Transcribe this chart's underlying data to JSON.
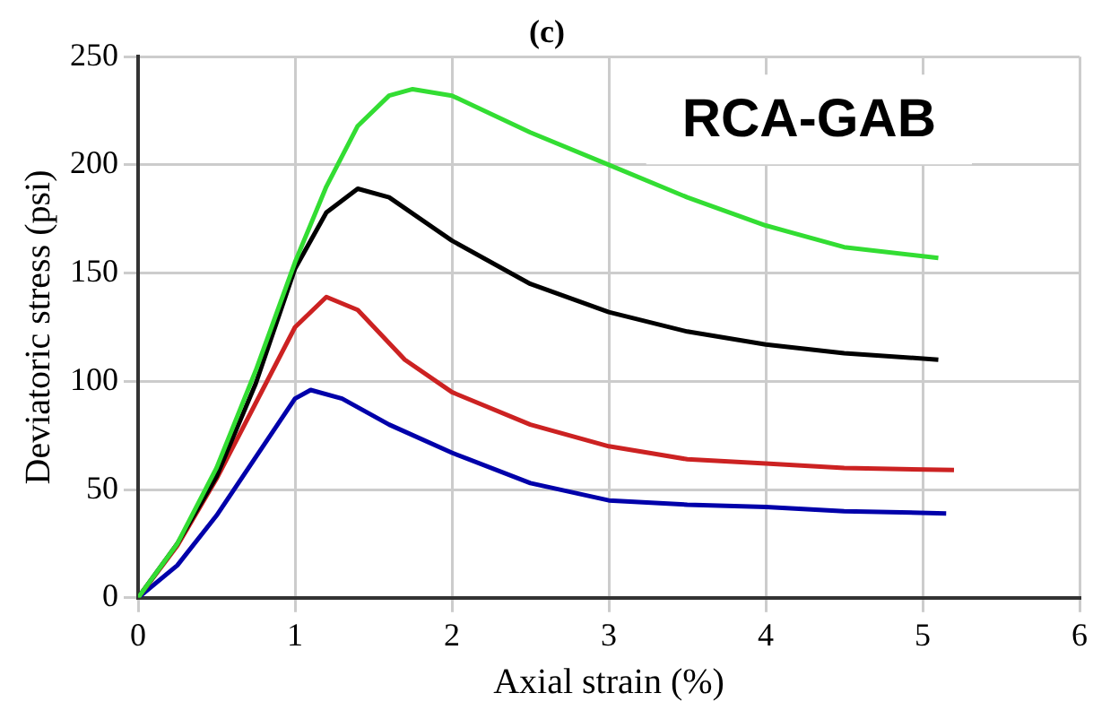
{
  "chart_data": {
    "type": "line",
    "title": "(c)",
    "xlabel": "Axial strain (%)",
    "ylabel": "Deviatoric stress (psi)",
    "annotations": [
      "RCA-GAB"
    ],
    "xlim": [
      0,
      6
    ],
    "xticks": [
      0,
      1,
      2,
      3,
      4,
      5,
      6
    ],
    "ylim": [
      0,
      250
    ],
    "yticks": [
      0,
      50,
      100,
      150,
      200,
      250
    ],
    "grid": true,
    "legend": false,
    "marker": "none",
    "line_style": "solid",
    "series": [
      {
        "color": "#33dd33",
        "x": [
          0,
          0.25,
          0.5,
          0.75,
          1,
          1.2,
          1.4,
          1.6,
          1.75,
          2,
          2.5,
          3,
          3.5,
          4,
          4.5,
          5.1
        ],
        "values": [
          0,
          25,
          60,
          105,
          155,
          190,
          218,
          232,
          235,
          232,
          215,
          200,
          185,
          172,
          162,
          157
        ]
      },
      {
        "color": "#000000",
        "x": [
          0,
          0.25,
          0.5,
          0.75,
          1,
          1.2,
          1.4,
          1.6,
          2,
          2.5,
          3,
          3.5,
          4,
          4.5,
          5.1
        ],
        "values": [
          0,
          25,
          56,
          99,
          152,
          178,
          189,
          185,
          165,
          145,
          132,
          123,
          117,
          113,
          110
        ]
      },
      {
        "color": "#cc2222",
        "x": [
          0,
          0.25,
          0.5,
          0.75,
          1,
          1.2,
          1.4,
          1.7,
          2,
          2.5,
          3,
          3.5,
          4,
          4.5,
          5.2
        ],
        "values": [
          0,
          24,
          55,
          90,
          125,
          139,
          133,
          110,
          95,
          80,
          70,
          64,
          62,
          60,
          59
        ]
      },
      {
        "color": "#0000aa",
        "x": [
          0,
          0.25,
          0.5,
          0.75,
          1,
          1.1,
          1.3,
          1.6,
          2,
          2.5,
          3,
          3.5,
          4,
          4.5,
          5.15
        ],
        "values": [
          0,
          15,
          38,
          65,
          92,
          96,
          92,
          80,
          67,
          53,
          45,
          43,
          42,
          40,
          39
        ]
      }
    ]
  }
}
